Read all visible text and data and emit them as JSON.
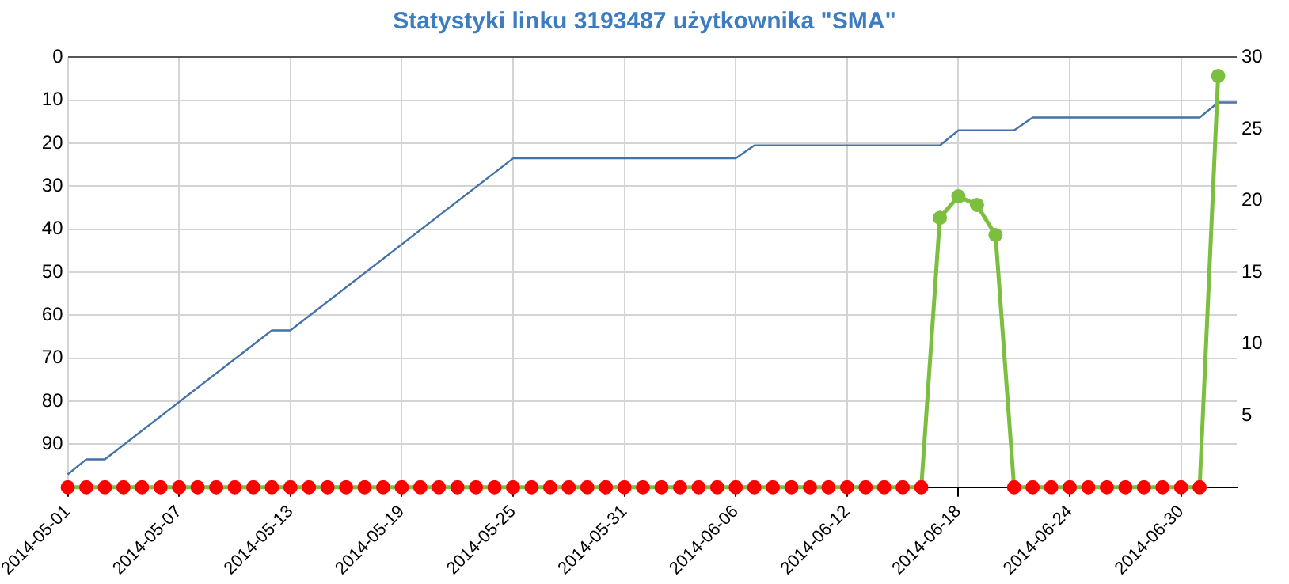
{
  "chart_data": {
    "type": "line",
    "title": "Statystyki linku 3193487 użytkownika \"SMA\"",
    "xlim": [
      "2014-05-01",
      "2014-07-03"
    ],
    "xticks": [
      "2014-05-01",
      "2014-05-07",
      "2014-05-13",
      "2014-05-19",
      "2014-05-25",
      "2014-05-31",
      "2014-06-06",
      "2014-06-12",
      "2014-06-18",
      "2014-06-24",
      "2014-06-30"
    ],
    "ylim": [
      100,
      0
    ],
    "yticks": [
      0,
      10,
      20,
      30,
      40,
      50,
      60,
      70,
      80,
      90,
      {
        "value": 100,
        "label": null
      }
    ],
    "y2lim": [
      0,
      30
    ],
    "y2ticks": [
      {
        "value": 0,
        "label": null
      },
      5,
      10,
      15,
      20,
      25,
      30
    ],
    "grid": true,
    "legend": false,
    "series": [
      {
        "color": "#4572a7",
        "axis": "y",
        "marker": "none",
        "x": [
          "2014-05-01",
          "2014-05-02",
          "2014-05-03",
          "2014-05-12",
          "2014-05-13",
          "2014-05-25",
          "2014-06-06",
          "2014-06-07",
          "2014-06-17",
          "2014-06-18",
          "2014-06-21",
          "2014-06-22",
          "2014-07-01",
          "2014-07-02",
          "2014-07-03"
        ],
        "values": [
          97,
          93.5,
          93.5,
          63.5,
          63.5,
          23.5,
          23.5,
          20.5,
          20.5,
          17,
          17,
          14,
          14,
          10.5,
          10.5
        ]
      },
      {
        "color": "#7cbf3f",
        "axis": "y2",
        "marker": "circle",
        "x": [
          "2014-05-01",
          "2014-05-02",
          "2014-05-03",
          "2014-05-04",
          "2014-05-05",
          "2014-05-06",
          "2014-05-07",
          "2014-05-08",
          "2014-05-09",
          "2014-05-10",
          "2014-05-11",
          "2014-05-12",
          "2014-05-13",
          "2014-05-14",
          "2014-05-15",
          "2014-05-16",
          "2014-05-17",
          "2014-05-18",
          "2014-05-19",
          "2014-05-20",
          "2014-05-21",
          "2014-05-22",
          "2014-05-23",
          "2014-05-24",
          "2014-05-25",
          "2014-05-26",
          "2014-05-27",
          "2014-05-28",
          "2014-05-29",
          "2014-05-30",
          "2014-05-31",
          "2014-06-01",
          "2014-06-02",
          "2014-06-03",
          "2014-06-04",
          "2014-06-05",
          "2014-06-06",
          "2014-06-07",
          "2014-06-08",
          "2014-06-09",
          "2014-06-10",
          "2014-06-11",
          "2014-06-12",
          "2014-06-13",
          "2014-06-14",
          "2014-06-15",
          "2014-06-16",
          "2014-06-17",
          "2014-06-18",
          "2014-06-19",
          "2014-06-20",
          "2014-06-21",
          "2014-06-22",
          "2014-06-23",
          "2014-06-24",
          "2014-06-25",
          "2014-06-26",
          "2014-06-27",
          "2014-06-28",
          "2014-06-29",
          "2014-06-30",
          "2014-07-01",
          "2014-07-02"
        ],
        "values": [
          0,
          0,
          0,
          0,
          0,
          0,
          0,
          0,
          0,
          0,
          0,
          0,
          0,
          0,
          0,
          0,
          0,
          0,
          0,
          0,
          0,
          0,
          0,
          0,
          0,
          0,
          0,
          0,
          0,
          0,
          0,
          0,
          0,
          0,
          0,
          0,
          0,
          0,
          0,
          0,
          0,
          0,
          0,
          0,
          0,
          0,
          0,
          18.8,
          20.3,
          19.7,
          17.6,
          0,
          0,
          0,
          0,
          0,
          0,
          0,
          0,
          0,
          0,
          0,
          28.7
        ],
        "colors": [
          "#ff0000",
          "#ff0000",
          "#ff0000",
          "#ff0000",
          "#ff0000",
          "#ff0000",
          "#ff0000",
          "#ff0000",
          "#ff0000",
          "#ff0000",
          "#ff0000",
          "#ff0000",
          "#ff0000",
          "#ff0000",
          "#ff0000",
          "#ff0000",
          "#ff0000",
          "#ff0000",
          "#ff0000",
          "#ff0000",
          "#ff0000",
          "#ff0000",
          "#ff0000",
          "#ff0000",
          "#ff0000",
          "#ff0000",
          "#ff0000",
          "#ff0000",
          "#ff0000",
          "#ff0000",
          "#ff0000",
          "#ff0000",
          "#ff0000",
          "#ff0000",
          "#ff0000",
          "#ff0000",
          "#ff0000",
          "#ff0000",
          "#ff0000",
          "#ff0000",
          "#ff0000",
          "#ff0000",
          "#ff0000",
          "#ff0000",
          "#ff0000",
          "#ff0000",
          "#ff0000",
          "#7cbf3f",
          "#7cbf3f",
          "#7cbf3f",
          "#7cbf3f",
          "#ff0000",
          "#ff0000",
          "#ff0000",
          "#ff0000",
          "#ff0000",
          "#ff0000",
          "#ff0000",
          "#ff0000",
          "#ff0000",
          "#ff0000",
          "#ff0000",
          "#7cbf3f"
        ]
      }
    ]
  }
}
